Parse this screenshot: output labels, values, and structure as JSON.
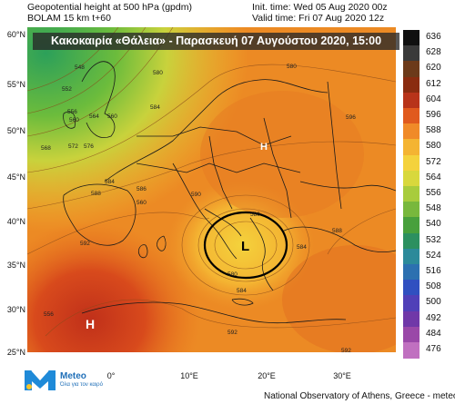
{
  "header": {
    "line1_left": "Geopotential height at 500 hPa (gpdm)",
    "line2_left": "BOLAM 15 km t+60",
    "init_time": "Init. time: Wed 05 Aug 2020 00z",
    "valid_time": "Valid time: Fri 07 Aug 2020 12z"
  },
  "banner": "Κακοκαιρία «Θάλεια» - Παρασκευή 07 Αυγούστου 2020, 15:00",
  "lat_labels": [
    "60°N",
    "55°N",
    "50°N",
    "45°N",
    "40°N",
    "35°N",
    "30°N",
    "25°N"
  ],
  "lon_labels": [
    "0°",
    "10°E",
    "20°E",
    "30°E"
  ],
  "pressure_centers": {
    "high1": "H",
    "high2": "H",
    "low": "L"
  },
  "contour_labels": {
    "c548": "548",
    "c552": "552",
    "c556": "556",
    "c560a": "560",
    "c560b": "560",
    "c564": "564",
    "c568": "568",
    "c572": "572",
    "c576": "576",
    "c580a": "580",
    "c580b": "580",
    "c580c": "580",
    "c580d": "580",
    "c584a": "584",
    "c584b": "584",
    "c584c": "584",
    "c584d": "584",
    "c586": "586",
    "c588a": "588",
    "c588b": "588",
    "c590": "590",
    "c592a": "592",
    "c592b": "592",
    "c592c": "592",
    "c596": "596",
    "c556b": "556",
    "c560c": "560"
  },
  "colorbar": {
    "labels": [
      "636",
      "628",
      "620",
      "612",
      "604",
      "596",
      "588",
      "580",
      "572",
      "564",
      "556",
      "548",
      "540",
      "532",
      "524",
      "516",
      "508",
      "500",
      "492",
      "484",
      "476"
    ],
    "colors": [
      "#101010",
      "#3a3a3a",
      "#6c3a1a",
      "#8a2c10",
      "#b8341a",
      "#e05a1e",
      "#f08a28",
      "#f4b432",
      "#f4d23c",
      "#d8d83c",
      "#a8cc3c",
      "#78b83c",
      "#48a03c",
      "#2c9060",
      "#2c8a9a",
      "#2c70b0",
      "#3050c0",
      "#5040b8",
      "#7038a8",
      "#9a48a8",
      "#c070c0"
    ]
  },
  "logo": {
    "name": "Meteo",
    "tagline": "Όλα για τον καιρό"
  },
  "footer": "National Observatory of Athens, Greece - meteo.gr"
}
